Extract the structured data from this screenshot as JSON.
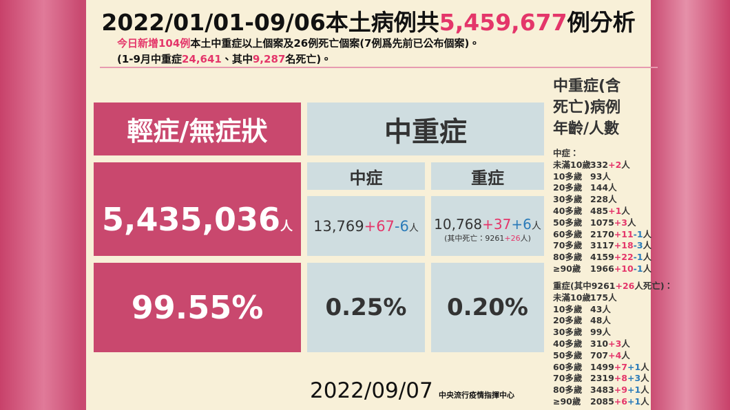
{
  "title": {
    "prefix": "2022/01/01-09/06本土病例共",
    "total": "5,459,677",
    "suffix": "例分析"
  },
  "summary": {
    "line1": [
      {
        "text": "今日新增104例",
        "highlight": true
      },
      {
        "text": "本土中重症以上個案及26例死亡個案(7例爲先前已公布個案)。"
      }
    ],
    "line2": [
      {
        "text": "(1-9月中重症"
      },
      {
        "text": "24,641",
        "highlight": true
      },
      {
        "text": "、其中"
      },
      {
        "text": "9,287",
        "highlight": true
      },
      {
        "text": "名死亡)。"
      }
    ]
  },
  "table": {
    "unit": "人",
    "mild": {
      "header": "輕症/無症狀",
      "count": "5,435,036",
      "share": "99.55%"
    },
    "severe": {
      "header": "中重症",
      "moderate": {
        "label": "中症",
        "base": "13,769",
        "deltas": [
          "+67",
          "-6"
        ],
        "share": "0.25%"
      },
      "critical": {
        "label": "重症",
        "base": "10,768",
        "deltas": [
          "+37",
          "+6"
        ],
        "share": "0.20%",
        "deaths": {
          "prefix": "(其中死亡：",
          "base": "9261",
          "delta": "+26",
          "suffix": "人)"
        }
      }
    }
  },
  "age_breakdown": {
    "title": [
      "中重症(含",
      "死亡)病例",
      "年齡/人數"
    ],
    "unit": "人",
    "groups": [
      {
        "label": [
          {
            "text": "中症："
          }
        ],
        "rows": [
          {
            "age": "未滿10歲",
            "count": "332",
            "deltas": [
              "+2"
            ]
          },
          {
            "age": "10多歲",
            "count": "93",
            "deltas": []
          },
          {
            "age": "20多歲",
            "count": "144",
            "deltas": []
          },
          {
            "age": "30多歲",
            "count": "228",
            "deltas": []
          },
          {
            "age": "40多歲",
            "count": "485",
            "deltas": [
              "+1"
            ]
          },
          {
            "age": "50多歲",
            "count": "1075",
            "deltas": [
              "+3"
            ]
          },
          {
            "age": "60多歲",
            "count": "2170",
            "deltas": [
              "+11",
              "-1"
            ]
          },
          {
            "age": "70多歲",
            "count": "3117",
            "deltas": [
              "+18",
              "-3"
            ]
          },
          {
            "age": "80多歲",
            "count": "4159",
            "deltas": [
              "+22",
              "-1"
            ]
          },
          {
            "age": "≥90歲",
            "count": "1966",
            "deltas": [
              "+10",
              "-1"
            ]
          }
        ]
      },
      {
        "label": [
          {
            "text": "重症(其中9261"
          },
          {
            "text": "+26",
            "highlight": true
          },
          {
            "text": "人死亡)："
          }
        ],
        "rows": [
          {
            "age": "未滿10歲",
            "count": "175",
            "deltas": []
          },
          {
            "age": "10多歲",
            "count": "43",
            "deltas": []
          },
          {
            "age": "20多歲",
            "count": "48",
            "deltas": []
          },
          {
            "age": "30多歲",
            "count": "99",
            "deltas": []
          },
          {
            "age": "40多歲",
            "count": "310",
            "deltas": [
              "+3"
            ]
          },
          {
            "age": "50多歲",
            "count": "707",
            "deltas": [
              "+4"
            ]
          },
          {
            "age": "60多歲",
            "count": "1499",
            "deltas": [
              "+7",
              "+1"
            ]
          },
          {
            "age": "70多歲",
            "count": "2319",
            "deltas": [
              "+8",
              "+3"
            ]
          },
          {
            "age": "80多歲",
            "count": "3483",
            "deltas": [
              "+9",
              "+1"
            ]
          },
          {
            "age": "≥90歲",
            "count": "2085",
            "deltas": [
              "+6",
              "+1"
            ]
          }
        ]
      }
    ]
  },
  "footer": {
    "date": "2022/09/07",
    "agency": "中央流行疫情指揮中心"
  }
}
